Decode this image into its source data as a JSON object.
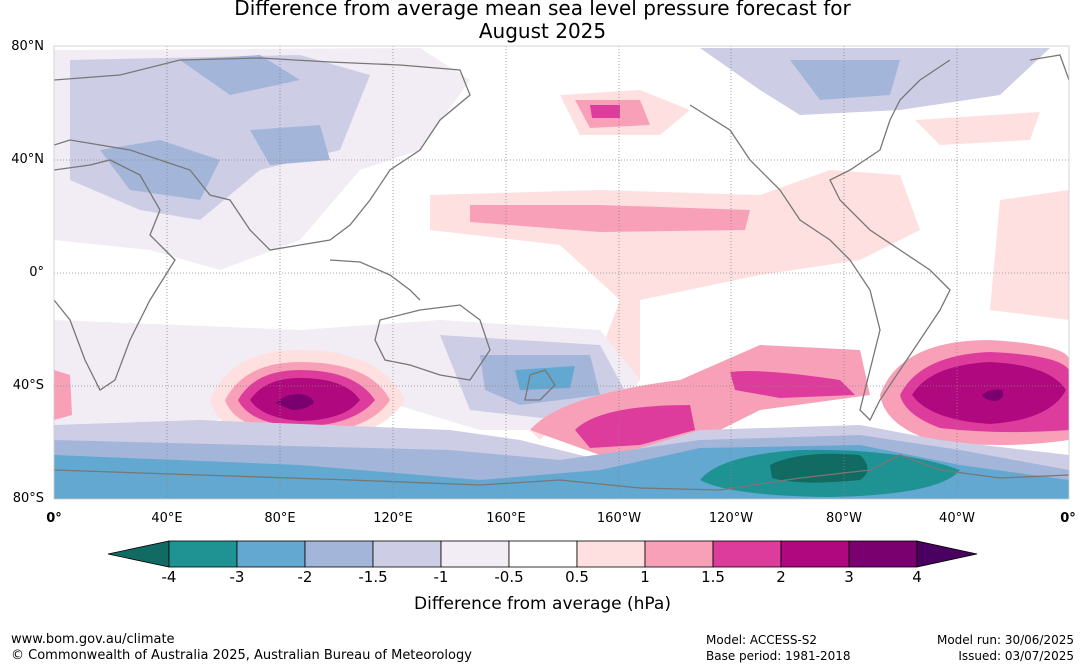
{
  "title_line1": "Difference from average mean sea level pressure forecast for",
  "title_line2": "August 2025",
  "lat_labels": [
    "80°N",
    "40°N",
    "0°",
    "40°S",
    "80°S"
  ],
  "lon_labels": [
    "0°",
    "40°E",
    "80°E",
    "120°E",
    "160°E",
    "160°W",
    "120°W",
    "80°W",
    "40°W",
    "0°"
  ],
  "colorbar": {
    "title": "Difference from average (hPa)",
    "ticks": [
      "-4",
      "-3",
      "-2",
      "-1.5",
      "-1",
      "-0.5",
      "0.5",
      "1",
      "1.5",
      "2",
      "3",
      "4"
    ],
    "colors": [
      "#116b63",
      "#1f9393",
      "#63a8d0",
      "#a3b6d9",
      "#cdcde6",
      "#f2ecf4",
      "#ffffff",
      "#ffe0e0",
      "#f8a0b8",
      "#de3c9d",
      "#b0087e",
      "#7a0070",
      "#4a0060"
    ]
  },
  "footer": {
    "url": "www.bom.gov.au/climate",
    "copyright": "© Commonwealth of Australia 2025, Australian Bureau of Meteorology",
    "model": "Model: ACCESS-S2",
    "base_period": "Base period: 1981-2018",
    "model_run": "Model run: 30/06/2025",
    "issued": "Issued: 03/07/2025"
  }
}
